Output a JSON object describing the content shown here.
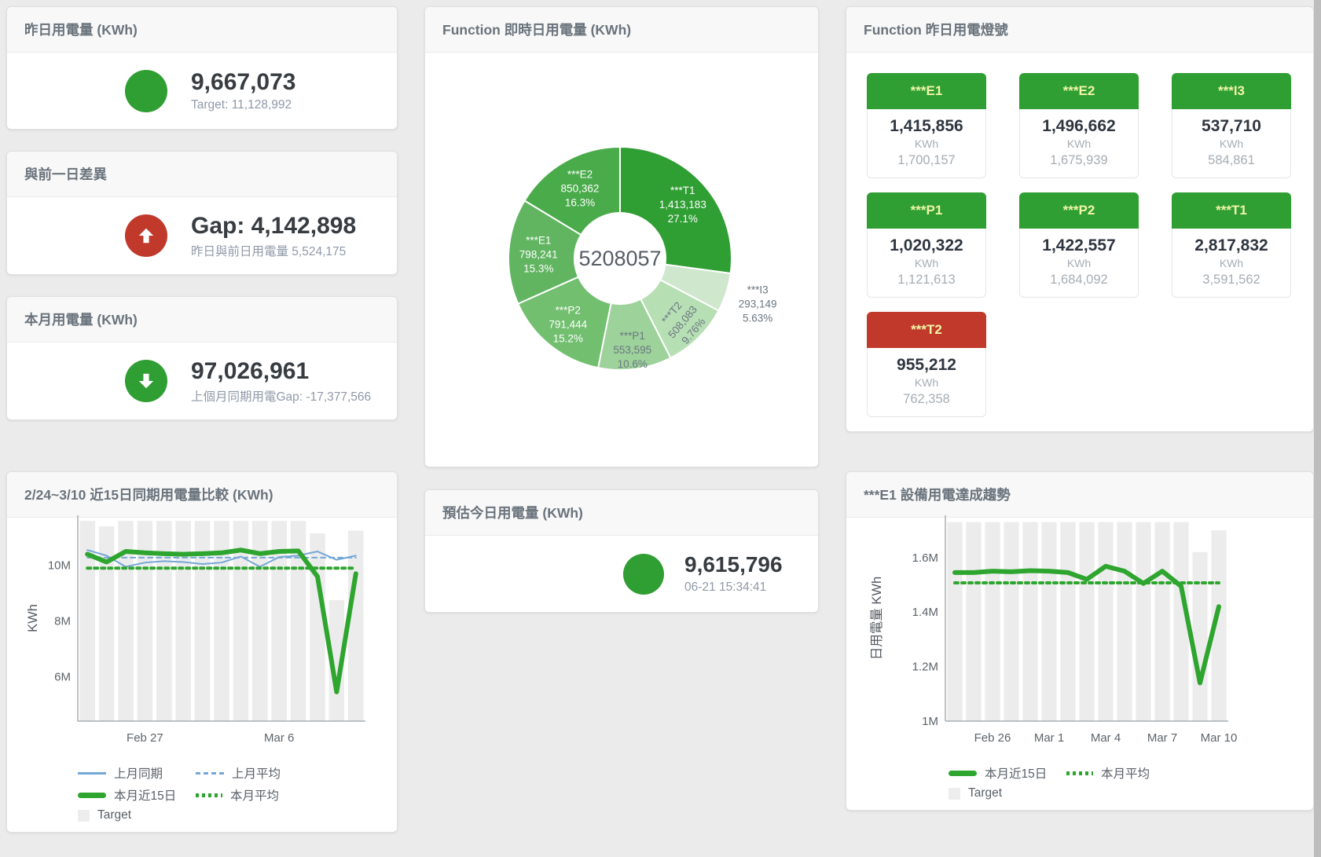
{
  "stat_cards": [
    {
      "title": "昨日用電量 (KWh)",
      "value": "9,667,073",
      "subtitle": "Target: 11,128,992",
      "icon": "none",
      "icon_color": "#2f9e33"
    },
    {
      "title": "與前一日差異",
      "value": "Gap: 4,142,898",
      "subtitle": "昨日與前日用電量 5,524,175",
      "icon": "up",
      "icon_color": "#c0392b"
    },
    {
      "title": "本月用電量 (KWh)",
      "value": "97,026,961",
      "subtitle": "上個月同期用電Gap: -17,377,566",
      "icon": "down",
      "icon_color": "#2f9e33"
    },
    {
      "title": "預估今日用電量 (KWh)",
      "value": "9,615,796",
      "subtitle": "06-21 15:34:41",
      "icon": "none",
      "icon_color": "#2f9e33"
    }
  ],
  "lights": {
    "title": "Function 昨日用電燈號",
    "colors": {
      "green": "#2f9e33",
      "red": "#c0392b",
      "header_text": "#f1f5a8"
    },
    "tiles": [
      {
        "name": "***E1",
        "value": "1,415,856",
        "unit": "KWh",
        "target": "1,700,157",
        "status": "green"
      },
      {
        "name": "***E2",
        "value": "1,496,662",
        "unit": "KWh",
        "target": "1,675,939",
        "status": "green"
      },
      {
        "name": "***I3",
        "value": "537,710",
        "unit": "KWh",
        "target": "584,861",
        "status": "green"
      },
      {
        "name": "***P1",
        "value": "1,020,322",
        "unit": "KWh",
        "target": "1,121,613",
        "status": "green"
      },
      {
        "name": "***P2",
        "value": "1,422,557",
        "unit": "KWh",
        "target": "1,684,092",
        "status": "green"
      },
      {
        "name": "***T1",
        "value": "2,817,832",
        "unit": "KWh",
        "target": "3,591,562",
        "status": "green"
      },
      {
        "name": "***T2",
        "value": "955,212",
        "unit": "KWh",
        "target": "762,358",
        "status": "red"
      }
    ]
  },
  "chart_data": [
    {
      "id": "donut",
      "type": "pie",
      "title": "Function 即時日用電量 (KWh)",
      "center_label": "5208057",
      "slices": [
        {
          "name": "***T1",
          "value": 1413183,
          "pct": "27.1%",
          "color": "#2f9e33",
          "label_color": "#ffffff",
          "label_r": 106
        },
        {
          "name": "***I3",
          "value": 293149,
          "pct": "5.63%",
          "color": "#cfe8cd",
          "label_color": "#6b7680",
          "outside": true
        },
        {
          "name": "***T2",
          "value": 508083,
          "pct": "9.76%",
          "color": "#b7dfb4",
          "label_color": "#6b7680",
          "label_r": 112,
          "rotate": -50
        },
        {
          "name": "***P1",
          "value": 553595,
          "pct": "10.6%",
          "color": "#9dd29a",
          "label_color": "#6b7680",
          "label_r": 116
        },
        {
          "name": "***P2",
          "value": 791444,
          "pct": "15.2%",
          "color": "#72bf70",
          "label_color": "#ffffff",
          "label_r": 106
        },
        {
          "name": "***E1",
          "value": 798241,
          "pct": "15.3%",
          "color": "#61b560",
          "label_color": "#ffffff",
          "label_r": 104
        },
        {
          "name": "***E2",
          "value": 850362,
          "pct": "16.3%",
          "color": "#4aab4b",
          "label_color": "#ffffff",
          "label_r": 104
        }
      ]
    },
    {
      "id": "compare",
      "type": "line+bar",
      "title": "2/24~3/10 近15日同期用電量比較 (KWh)",
      "ylabel": "KWh",
      "ymin": 4.4,
      "ymax": 11.8,
      "yticks": [
        {
          "v": 6,
          "label": "6M"
        },
        {
          "v": 8,
          "label": "8M"
        },
        {
          "v": 10,
          "label": "10M"
        }
      ],
      "xticks": [
        {
          "i": 3,
          "label": "Feb 27"
        },
        {
          "i": 10,
          "label": "Mar 6"
        }
      ],
      "bars": {
        "name": "Target",
        "color": "#ececec",
        "values": [
          11.6,
          11.4,
          11.6,
          11.6,
          11.6,
          11.6,
          11.6,
          11.6,
          11.6,
          11.6,
          11.6,
          11.6,
          11.15,
          8.75,
          11.25
        ]
      },
      "series": [
        {
          "name": "上月同期",
          "color": "#74a7d6",
          "width": 2,
          "dash": null,
          "values": [
            10.55,
            10.35,
            9.95,
            10.1,
            10.15,
            10.12,
            10.05,
            10.1,
            10.32,
            9.95,
            10.3,
            10.35,
            10.5,
            10.2,
            10.35
          ]
        },
        {
          "name": "上月平均",
          "color": "#74a7d6",
          "width": 2,
          "dash": "6 5",
          "constant": 10.28
        },
        {
          "name": "本月近15日",
          "color": "#2ea52e",
          "width": 6,
          "dash": null,
          "values": [
            10.4,
            10.12,
            10.5,
            10.45,
            10.42,
            10.4,
            10.42,
            10.45,
            10.55,
            10.42,
            10.5,
            10.52,
            9.6,
            5.45,
            9.7
          ]
        },
        {
          "name": "本月平均",
          "color": "#2ea52e",
          "width": 4,
          "dash": "4 5",
          "constant": 9.9
        }
      ],
      "legend": [
        [
          {
            "type": "line",
            "color": "#74a7d6",
            "label": "上月同期"
          },
          {
            "type": "dash",
            "color": "#74a7d6",
            "label": "上月平均"
          }
        ],
        [
          {
            "type": "thick",
            "color": "#2ea52e",
            "label": "本月近15日"
          },
          {
            "type": "dots",
            "color": "#2ea52e",
            "label": "本月平均"
          }
        ],
        [
          {
            "type": "square",
            "color": "#ededed",
            "label": "Target"
          }
        ]
      ]
    },
    {
      "id": "trend",
      "type": "line+bar",
      "title": "***E1 設備用電達成趨勢",
      "ylabel": "日用電量 KWh",
      "ymin": 1.0,
      "ymax": 1.755,
      "yticks": [
        {
          "v": 1,
          "label": "1M"
        },
        {
          "v": 1.2,
          "label": "1.2M"
        },
        {
          "v": 1.4,
          "label": "1.4M"
        },
        {
          "v": 1.6,
          "label": "1.6M"
        }
      ],
      "xticks": [
        {
          "i": 2,
          "label": "Feb 26"
        },
        {
          "i": 5,
          "label": "Mar 1"
        },
        {
          "i": 8,
          "label": "Mar 4"
        },
        {
          "i": 11,
          "label": "Mar 7"
        },
        {
          "i": 14,
          "label": "Mar 10"
        }
      ],
      "bars": {
        "name": "Target",
        "color": "#ececec",
        "values": [
          1.73,
          1.73,
          1.73,
          1.73,
          1.73,
          1.73,
          1.73,
          1.73,
          1.73,
          1.73,
          1.73,
          1.73,
          1.73,
          1.62,
          1.7
        ]
      },
      "series": [
        {
          "name": "本月近15日",
          "color": "#2ea52e",
          "width": 6,
          "dash": null,
          "values": [
            1.545,
            1.545,
            1.55,
            1.548,
            1.552,
            1.55,
            1.545,
            1.52,
            1.568,
            1.55,
            1.505,
            1.55,
            1.495,
            1.14,
            1.42
          ]
        },
        {
          "name": "本月平均",
          "color": "#2ea52e",
          "width": 4,
          "dash": "4 5",
          "constant": 1.507
        }
      ],
      "legend": [
        [
          {
            "type": "thick",
            "color": "#2ea52e",
            "label": "本月近15日"
          },
          {
            "type": "dots",
            "color": "#2ea52e",
            "label": "本月平均"
          }
        ],
        [
          {
            "type": "square",
            "color": "#ededed",
            "label": "Target"
          }
        ]
      ]
    }
  ]
}
